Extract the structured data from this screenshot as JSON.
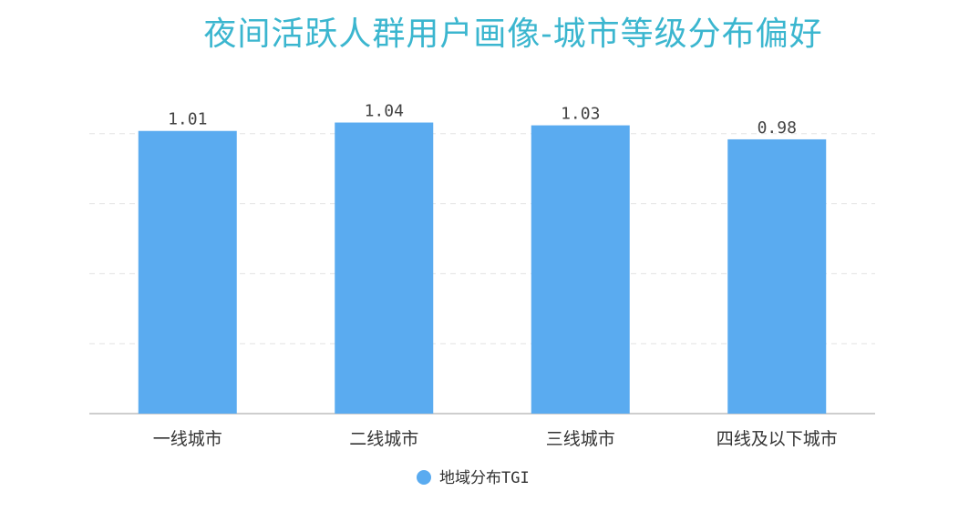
{
  "chart_data": {
    "type": "bar",
    "title": "夜间活跃人群用户画像-城市等级分布偏好",
    "categories": [
      "一线城市",
      "二线城市",
      "三线城市",
      "四线及以下城市"
    ],
    "series": [
      {
        "name": "地域分布TGI",
        "values": [
          1.01,
          1.04,
          1.03,
          0.98
        ],
        "labels": [
          "1.01",
          "1.04",
          "1.03",
          "0.98"
        ]
      }
    ],
    "ylim": [
      0,
      1.25
    ],
    "grid": true,
    "legend": "bottom",
    "bar_color": "#5aabf0"
  }
}
